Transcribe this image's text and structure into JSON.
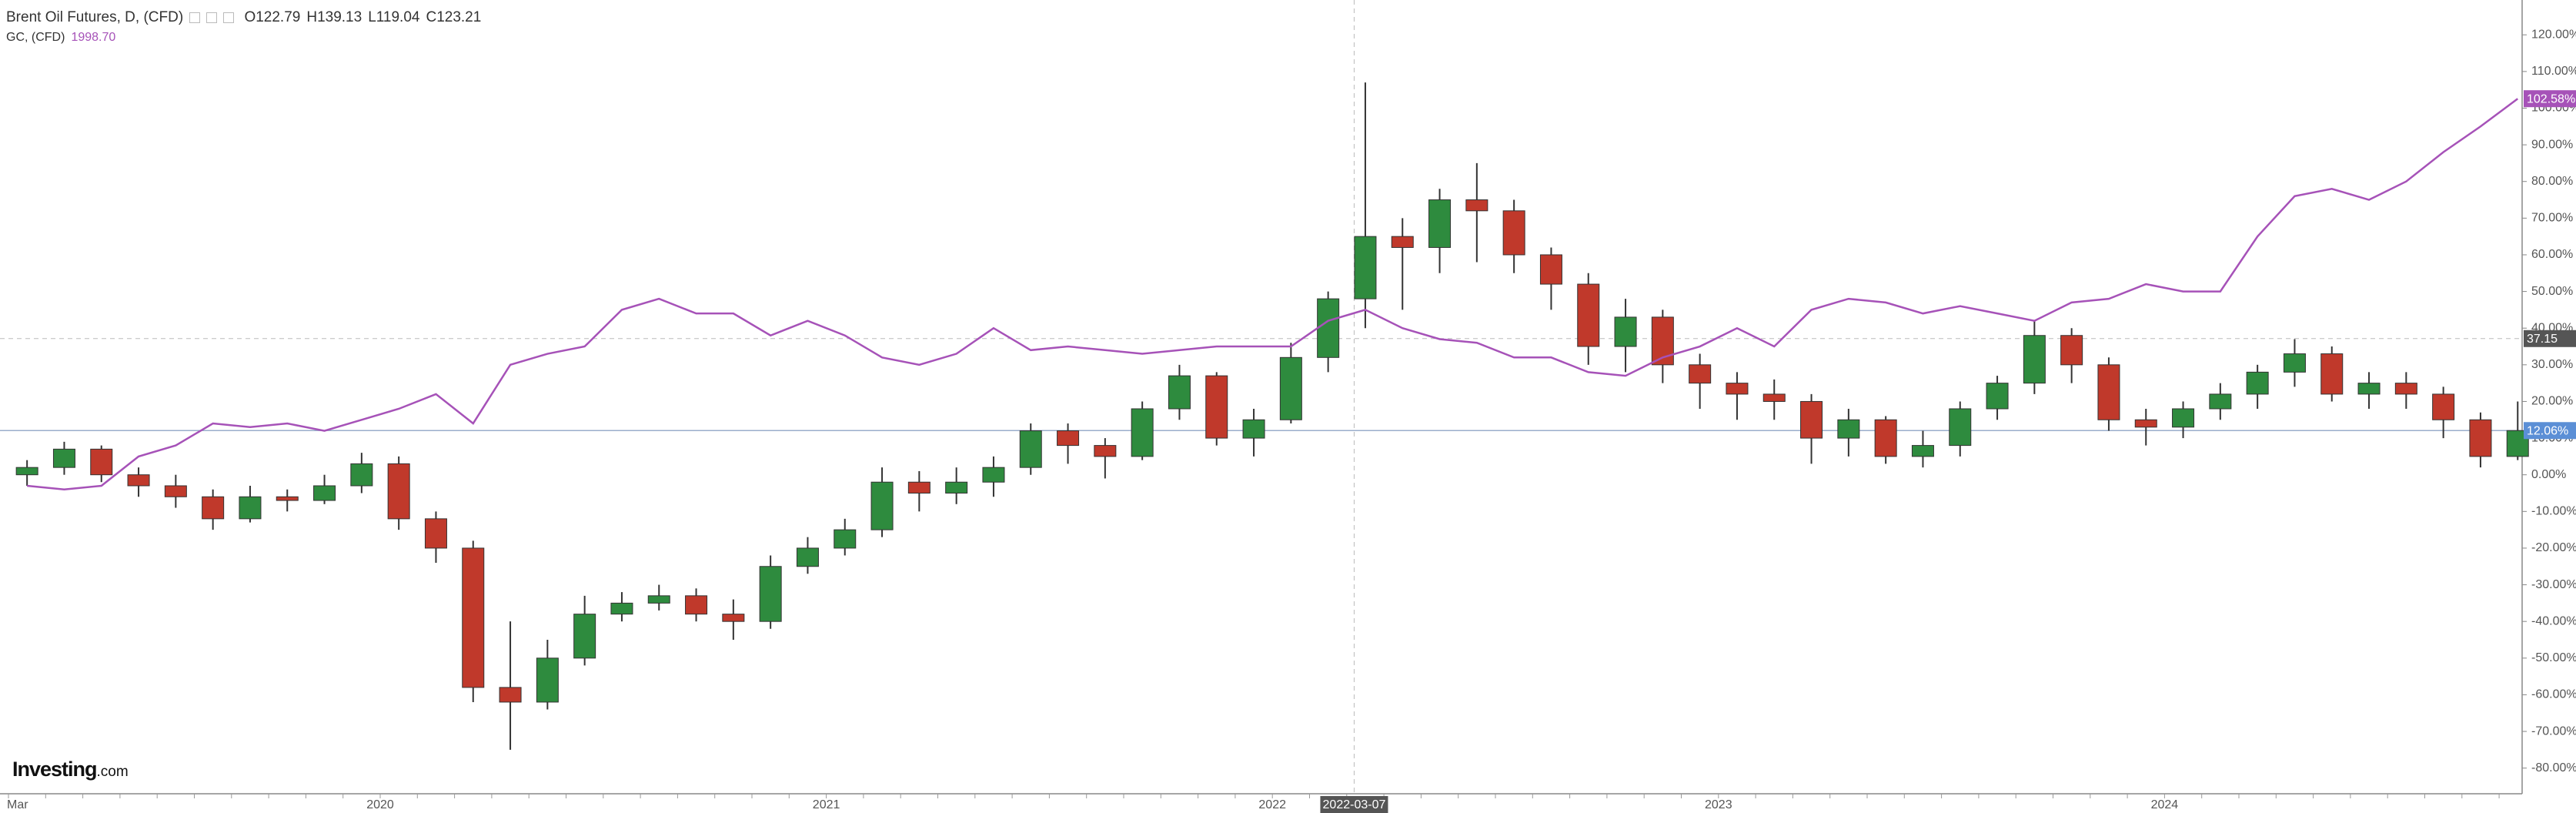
{
  "chart_data": {
    "type": "candlestick",
    "categories": [
      "Mar",
      null,
      null,
      null,
      null,
      null,
      null,
      null,
      null,
      null,
      "2020",
      null,
      null,
      null,
      null,
      null,
      null,
      null,
      null,
      null,
      null,
      null,
      "2021",
      null,
      null,
      null,
      null,
      null,
      null,
      null,
      null,
      null,
      null,
      null,
      "2022",
      null,
      null,
      null,
      null,
      null,
      null,
      null,
      null,
      null,
      null,
      null,
      "2023",
      null,
      null,
      null,
      null,
      null,
      null,
      null,
      null,
      null,
      null,
      null,
      "2024",
      null,
      null,
      null,
      null,
      null,
      null,
      null,
      null,
      null
    ],
    "header_values": [
      "O122.79",
      "H139.13",
      "L119.04",
      "C123.21"
    ],
    "series": [
      {
        "name": "Brent Oil Futures, D, (CFD)",
        "type": "candlestick",
        "up_color": "#2e8b3e",
        "down_color": "#c0392b",
        "last_label": "12.06%",
        "last_color": "#5b8fd6",
        "open": [
          0,
          2,
          7,
          0,
          -3,
          -6,
          -12,
          -6,
          -7,
          -3,
          3,
          -12,
          -20,
          -58,
          -62,
          -50,
          -38,
          -35,
          -33,
          -38,
          -40,
          -25,
          -20,
          -15,
          -2,
          -5,
          -2,
          2,
          12,
          8,
          5,
          18,
          27,
          10,
          15,
          32,
          48,
          65,
          62,
          75,
          72,
          60,
          52,
          35,
          43,
          30,
          25,
          22,
          20,
          10,
          15,
          5,
          8,
          18,
          25,
          38,
          30,
          15,
          13,
          18,
          22,
          28,
          33,
          22,
          25,
          22,
          15,
          5
        ],
        "high": [
          4,
          9,
          8,
          2,
          0,
          -4,
          -3,
          -4,
          0,
          6,
          5,
          -10,
          -18,
          -40,
          -45,
          -33,
          -32,
          -30,
          -31,
          -34,
          -22,
          -17,
          -12,
          2,
          1,
          2,
          5,
          14,
          14,
          10,
          20,
          30,
          28,
          18,
          36,
          50,
          107,
          70,
          78,
          85,
          75,
          62,
          55,
          48,
          45,
          33,
          28,
          26,
          22,
          18,
          16,
          12,
          20,
          27,
          42,
          40,
          32,
          18,
          20,
          25,
          30,
          37,
          35,
          28,
          28,
          24,
          17,
          20
        ],
        "low": [
          -3,
          0,
          -2,
          -6,
          -9,
          -15,
          -13,
          -10,
          -8,
          -5,
          -15,
          -24,
          -62,
          -75,
          -64,
          -52,
          -40,
          -37,
          -40,
          -45,
          -42,
          -27,
          -22,
          -17,
          -10,
          -8,
          -6,
          0,
          3,
          -1,
          4,
          15,
          8,
          5,
          14,
          28,
          40,
          45,
          55,
          58,
          55,
          45,
          30,
          28,
          25,
          18,
          15,
          15,
          3,
          5,
          3,
          2,
          5,
          15,
          22,
          25,
          12,
          8,
          10,
          15,
          18,
          24,
          20,
          18,
          18,
          10,
          2,
          4
        ],
        "close": [
          2,
          7,
          0,
          -3,
          -6,
          -12,
          -6,
          -7,
          -3,
          3,
          -12,
          -20,
          -58,
          -62,
          -50,
          -38,
          -35,
          -33,
          -38,
          -40,
          -25,
          -20,
          -15,
          -2,
          -5,
          -2,
          2,
          12,
          8,
          5,
          18,
          27,
          10,
          15,
          32,
          48,
          65,
          62,
          75,
          72,
          60,
          52,
          35,
          43,
          30,
          25,
          22,
          20,
          10,
          15,
          5,
          8,
          18,
          25,
          38,
          30,
          15,
          13,
          18,
          22,
          28,
          33,
          22,
          25,
          22,
          15,
          5,
          12.06
        ]
      },
      {
        "name": "GC, (CFD)",
        "type": "line",
        "color": "#a652b8",
        "last_price": "1998.70",
        "last_label": "102.58%",
        "values": [
          -3,
          -4,
          -3,
          5,
          8,
          14,
          13,
          14,
          12,
          15,
          18,
          22,
          14,
          30,
          33,
          35,
          45,
          48,
          44,
          44,
          38,
          42,
          38,
          32,
          30,
          33,
          40,
          34,
          35,
          34,
          33,
          34,
          35,
          35,
          35,
          42,
          45,
          40,
          37,
          36,
          32,
          32,
          28,
          27,
          32,
          35,
          40,
          35,
          45,
          48,
          47,
          44,
          46,
          44,
          42,
          47,
          48,
          52,
          50,
          50,
          65,
          76,
          78,
          75,
          80,
          88,
          95,
          102.58
        ]
      }
    ],
    "crosshair": {
      "x_label": "2022-03-07",
      "y": 37.15
    },
    "ylim": [
      -87,
      129.5
    ],
    "yticks": [
      {
        "value": 120,
        "label": "120.00%"
      },
      {
        "value": 110,
        "label": "110.00%"
      },
      {
        "value": 100,
        "label": "100.00%"
      },
      {
        "value": 90,
        "label": "90.00%"
      },
      {
        "value": 80,
        "label": "80.00%"
      },
      {
        "value": 70,
        "label": "70.00%"
      },
      {
        "value": 60,
        "label": "60.00%"
      },
      {
        "value": 50,
        "label": "50.00%"
      },
      {
        "value": 40,
        "label": "40.00%"
      },
      {
        "value": 30,
        "label": "30.00%"
      },
      {
        "value": 20,
        "label": "20.00%"
      },
      {
        "value": 10,
        "label": "10.00%"
      },
      {
        "value": 0,
        "label": "0.00%"
      },
      {
        "value": -10,
        "label": "-10.00%"
      },
      {
        "value": -20,
        "label": "-20.00%"
      },
      {
        "value": -30,
        "label": "-30.00%"
      },
      {
        "value": -40,
        "label": "-40.00%"
      },
      {
        "value": -50,
        "label": "-50.00%"
      },
      {
        "value": -60,
        "label": "-60.00%"
      },
      {
        "value": -70,
        "label": "-70.00%"
      },
      {
        "value": -80,
        "label": "-80.00%"
      }
    ],
    "brand": {
      "name": "Investing",
      "suffix": ".com"
    }
  }
}
